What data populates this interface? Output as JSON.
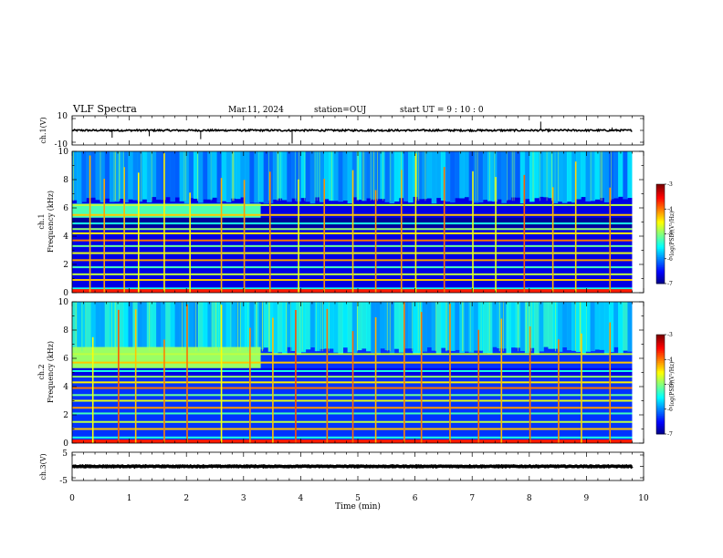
{
  "title": "VLF Spectra",
  "date": "Mar.11, 2024",
  "station": "station=OUJ",
  "start": "start  UT =  9 : 10 : 0",
  "x_axis_label": "Time (min)",
  "chart_data": [
    {
      "type": "line",
      "name": "ch1_waveform",
      "ylabel": "ch.1(V)",
      "ylim": [
        -10,
        10
      ],
      "ytick_labels": [
        "10",
        "-10"
      ],
      "xlim": [
        0,
        10
      ],
      "x_extent_min": 9.8,
      "baseline": 0,
      "noise_amplitude": 0.6,
      "spikes": [
        {
          "x": 0.7,
          "y": -5
        },
        {
          "x": 1.35,
          "y": -4
        },
        {
          "x": 2.25,
          "y": -6
        },
        {
          "x": 3.85,
          "y": -9
        },
        {
          "x": 8.2,
          "y": 6
        },
        {
          "x": 9.45,
          "y": 2
        }
      ]
    },
    {
      "type": "heatmap",
      "name": "ch1_spectrogram",
      "ylabel": "ch.1",
      "ylabel2": "Frequency (kHz)",
      "xlim": [
        0,
        10
      ],
      "ylim": [
        0,
        10
      ],
      "x_extent_min": 9.8,
      "yticks": [
        0,
        2,
        4,
        6,
        8,
        10
      ],
      "colorbar": {
        "label": "log(PSD)(V²/Hz)",
        "range": [
          -7,
          -3
        ],
        "ticks": [
          "-3",
          "-4",
          "-5",
          "-6",
          "-7"
        ]
      },
      "background_level": -6.6,
      "upper_band_level": -5.8,
      "enhanced_band_until_min": 3.3,
      "enhanced_band_kHz": [
        5.3,
        6.3
      ],
      "enhanced_band_level": -5.2,
      "lines_kHz": [
        0.3,
        0.9,
        1.3,
        1.8,
        2.3,
        2.8,
        3.3,
        3.7,
        4.2,
        4.5,
        4.9,
        5.5,
        6.2
      ],
      "burst_times_min": [
        0.3,
        0.55,
        0.9,
        1.15,
        1.6,
        2.05,
        2.6,
        3.0,
        3.45,
        3.95,
        4.4,
        4.9,
        5.3,
        5.75,
        6.0,
        6.5,
        7.0,
        7.4,
        7.9,
        8.4,
        8.8,
        9.4
      ]
    },
    {
      "type": "heatmap",
      "name": "ch2_spectrogram",
      "ylabel": "ch.2",
      "ylabel2": "Frequency (kHz)",
      "xlim": [
        0,
        10
      ],
      "ylim": [
        0,
        10
      ],
      "x_extent_min": 9.8,
      "yticks": [
        0,
        2,
        4,
        6,
        8,
        10
      ],
      "colorbar": {
        "label": "log(PSD)(V²/Hz)",
        "range": [
          -7,
          -3
        ],
        "ticks": [
          "-3",
          "-4",
          "-5",
          "-6",
          "-7"
        ]
      },
      "background_level": -6.3,
      "upper_band_level": -5.6,
      "enhanced_band_until_min": 3.3,
      "enhanced_band_kHz": [
        5.3,
        6.8
      ],
      "enhanced_band_level": -4.9,
      "lines_kHz": [
        0.4,
        1.0,
        1.5,
        2.1,
        2.5,
        3.0,
        3.4,
        3.9,
        4.3,
        4.7,
        5.1,
        5.7,
        6.3
      ],
      "burst_times_min": [
        0.35,
        0.8,
        1.1,
        1.6,
        2.0,
        2.6,
        3.1,
        3.5,
        3.9,
        4.45,
        4.9,
        5.3,
        5.8,
        6.1,
        6.6,
        7.1,
        7.5,
        8.0,
        8.5,
        8.9,
        9.4
      ]
    },
    {
      "type": "line",
      "name": "ch3_waveform",
      "ylabel": "ch.3(V)",
      "ylim": [
        -5,
        5
      ],
      "ytick_labels": [
        "5",
        "-5"
      ],
      "xlim": [
        0,
        10
      ],
      "x_extent_min": 9.8,
      "baseline": 0,
      "noise_amplitude": 0.15,
      "spikes": []
    }
  ],
  "x_ticks": [
    "0",
    "1",
    "2",
    "3",
    "4",
    "5",
    "6",
    "7",
    "8",
    "9",
    "10"
  ]
}
